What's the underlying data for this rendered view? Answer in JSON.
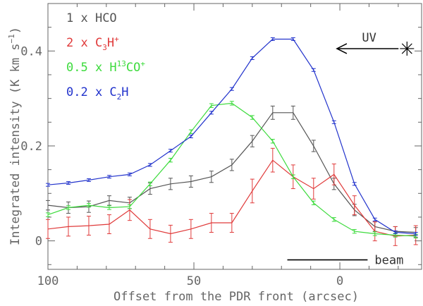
{
  "chart_data": {
    "type": "line",
    "xlabel": "Offset from the PDR front (arcsec)",
    "ylabel": "Integrated intensity (K km s",
    "ylabel_sup": "−1",
    "ylabel_close": ")",
    "xlim": [
      100,
      -28
    ],
    "ylim": [
      -0.06,
      0.5
    ],
    "xticks": [
      100,
      50,
      0
    ],
    "xtick_labels": [
      "100",
      "50",
      "0"
    ],
    "yticks": [
      0,
      0.2,
      0.4
    ],
    "ytick_labels": [
      "0",
      "0.2",
      "0.4"
    ],
    "legend_position": "top-left",
    "annotations": {
      "uv_label": "UV",
      "beam_label": "beam",
      "beam_x": [
        18,
        -9.5
      ],
      "beam_y": -0.04,
      "uv_arrow_x": [
        -23,
        1
      ],
      "uv_y": 0.405
    },
    "series": [
      {
        "name": "HCO",
        "legend_coef": "1 x ",
        "legend_parts": [
          {
            "t": "HCO",
            "s": ""
          }
        ],
        "color": "#555555",
        "x": [
          100,
          93,
          86,
          79,
          72,
          65,
          58,
          51,
          44,
          37,
          30,
          23,
          16,
          9,
          2,
          -5,
          -12,
          -19,
          -26
        ],
        "values": [
          0.075,
          0.07,
          0.072,
          0.085,
          0.08,
          0.11,
          0.12,
          0.125,
          0.135,
          0.16,
          0.21,
          0.27,
          0.27,
          0.2,
          0.12,
          0.065,
          0.03,
          0.02,
          0.018
        ],
        "errors": [
          0.01,
          0.012,
          0.012,
          0.01,
          0.012,
          0.012,
          0.012,
          0.012,
          0.012,
          0.012,
          0.012,
          0.014,
          0.014,
          0.012,
          0.012,
          0.012,
          0.01,
          0.01,
          0.01
        ]
      },
      {
        "name": "C3H+",
        "legend_coef": "2 x ",
        "legend_parts": [
          {
            "t": "C",
            "s": ""
          },
          {
            "t": "3",
            "s": "sub"
          },
          {
            "t": "H",
            "s": ""
          },
          {
            "t": "+",
            "s": "sup"
          }
        ],
        "color": "#e03a3a",
        "x": [
          100,
          93,
          86,
          79,
          72,
          65,
          58,
          51,
          44,
          37,
          30,
          23,
          16,
          9,
          2,
          -5,
          -12,
          -19,
          -26
        ],
        "values": [
          0.025,
          0.03,
          0.032,
          0.035,
          0.065,
          0.025,
          0.015,
          0.025,
          0.038,
          0.038,
          0.105,
          0.17,
          0.135,
          0.11,
          0.14,
          0.075,
          0.02,
          0.01,
          0.012
        ],
        "errors": [
          0.02,
          0.02,
          0.02,
          0.02,
          0.022,
          0.02,
          0.018,
          0.02,
          0.02,
          0.02,
          0.025,
          0.025,
          0.025,
          0.022,
          0.022,
          0.02,
          0.02,
          0.02,
          0.02
        ]
      },
      {
        "name": "H13CO+",
        "legend_coef": "0.5 x ",
        "legend_parts": [
          {
            "t": "H",
            "s": ""
          },
          {
            "t": "13",
            "s": "sup"
          },
          {
            "t": "CO",
            "s": ""
          },
          {
            "t": "+",
            "s": "sup"
          }
        ],
        "color": "#3ddb3d",
        "x": [
          100,
          93,
          86,
          79,
          72,
          65,
          58,
          51,
          44,
          37,
          30,
          23,
          16,
          9,
          2,
          -5,
          -12,
          -19,
          -26
        ],
        "values": [
          0.055,
          0.07,
          0.075,
          0.07,
          0.072,
          0.12,
          0.17,
          0.23,
          0.285,
          0.29,
          0.26,
          0.21,
          0.135,
          0.08,
          0.045,
          0.02,
          0.015,
          0.012,
          0.01
        ],
        "errors": [
          0.004,
          0.004,
          0.004,
          0.004,
          0.004,
          0.004,
          0.004,
          0.004,
          0.004,
          0.004,
          0.004,
          0.004,
          0.004,
          0.004,
          0.004,
          0.004,
          0.004,
          0.004,
          0.004
        ]
      },
      {
        "name": "C2H",
        "legend_coef": "0.2 x ",
        "legend_parts": [
          {
            "t": "C",
            "s": ""
          },
          {
            "t": "2",
            "s": "sub"
          },
          {
            "t": "H",
            "s": ""
          }
        ],
        "color": "#2233cc",
        "x": [
          100,
          93,
          86,
          79,
          72,
          65,
          58,
          51,
          44,
          37,
          30,
          23,
          16,
          9,
          2,
          -5,
          -12,
          -19,
          -26
        ],
        "values": [
          0.118,
          0.122,
          0.128,
          0.135,
          0.14,
          0.16,
          0.19,
          0.22,
          0.27,
          0.32,
          0.385,
          0.425,
          0.425,
          0.36,
          0.25,
          0.12,
          0.045,
          0.018,
          0.015
        ],
        "errors": [
          0.003,
          0.003,
          0.003,
          0.003,
          0.003,
          0.003,
          0.003,
          0.003,
          0.003,
          0.003,
          0.003,
          0.003,
          0.003,
          0.003,
          0.003,
          0.003,
          0.003,
          0.003,
          0.003
        ]
      }
    ]
  }
}
